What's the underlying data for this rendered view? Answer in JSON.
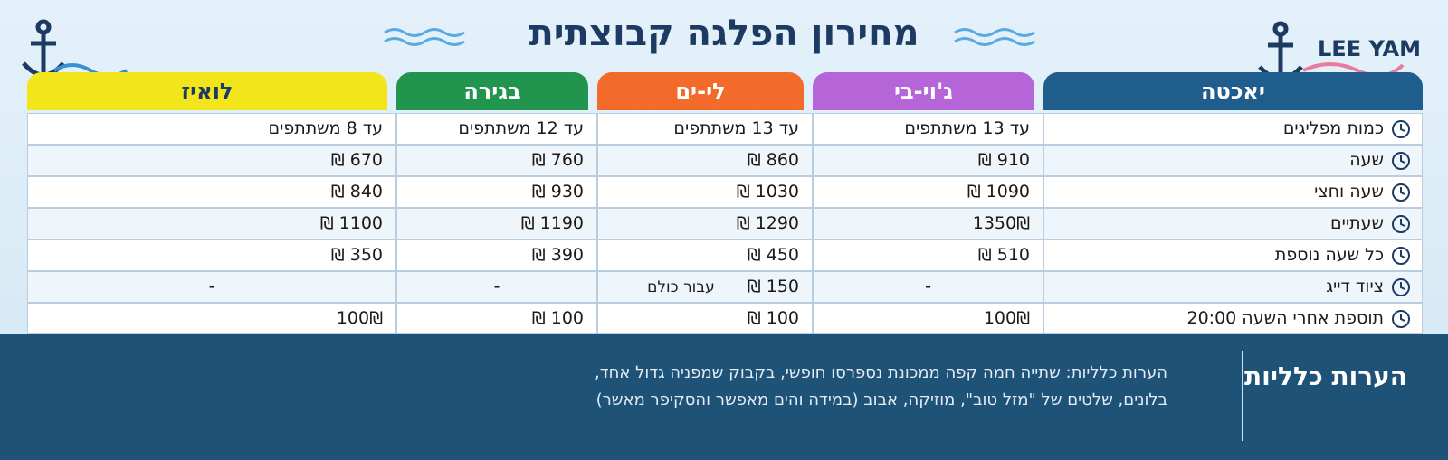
{
  "header": {
    "title": "מחירון הפלגה קבוצתית",
    "logo": "LEE YAM"
  },
  "table": {
    "columns": [
      "יאכטה",
      "ג'וי-בי",
      "לי-ים",
      "בגירה",
      "לואיז"
    ],
    "rows": [
      [
        "כמות מפליגים",
        "עד 13 משתתפים",
        "עד 13 משתתפים",
        "עד 12 משתתפים",
        "עד 8 משתתפים"
      ],
      [
        "שעה",
        "910 ₪",
        "860 ₪",
        "760 ₪",
        "670 ₪"
      ],
      [
        "שעה וחצי",
        "1090 ₪",
        "1030 ₪",
        "930 ₪",
        "840 ₪"
      ],
      [
        "שעתיים",
        "1350₪",
        "1290 ₪",
        "1190 ₪",
        "1100 ₪"
      ],
      [
        "כל שעה נוספת",
        "510 ₪",
        "450 ₪",
        "390 ₪",
        "350 ₪"
      ],
      [
        "ציוד דייג",
        "-",
        {
          "price": "150 ₪",
          "note": "עבור כולם"
        },
        "-",
        "-"
      ],
      [
        "תוספת אחרי השעה 20:00",
        "100₪",
        "100 ₪",
        "100 ₪",
        "100₪"
      ]
    ]
  },
  "notes": {
    "title": "הערות כלליות",
    "lines": [
      "הערות כלליות:  שתייה חמה קפה ממכונת נספרסו חופשי, בקבוק שמפניה גדול אחד,",
      "בלונים, שלטים של \"מזל טוב\", מוזיקה, אבוב (במידה והים מאפשר והסקיפר מאשר)"
    ]
  }
}
